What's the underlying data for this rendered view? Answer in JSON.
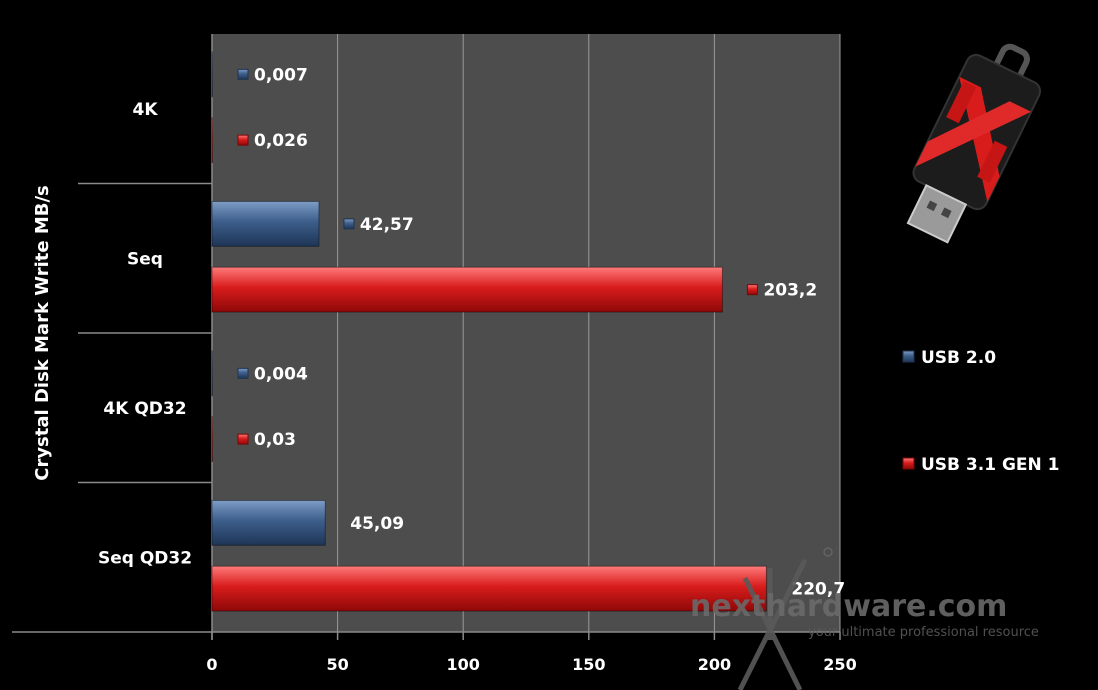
{
  "chart_data": {
    "type": "bar",
    "orientation": "horizontal",
    "ylabel": "Crystal Disk Mark Write MB/s",
    "categories": [
      "4K",
      "Seq",
      "4K QD32",
      "Seq QD32"
    ],
    "series": [
      {
        "name": "USB 2.0",
        "color": "#3a5a86",
        "values": [
          0.007,
          42.57,
          0.004,
          45.09
        ],
        "labels": [
          "0,007",
          "42,57",
          "0,004",
          "45,09"
        ]
      },
      {
        "name": "USB 3.1 GEN 1",
        "color": "#d81c1c",
        "values": [
          0.026,
          203.2,
          0.03,
          220.7
        ],
        "labels": [
          "0,026",
          "203,2",
          "0,03",
          "220,7"
        ]
      }
    ],
    "xlim": [
      0,
      250
    ],
    "xticks": [
      0,
      50,
      100,
      150,
      200,
      250
    ],
    "xtick_labels": [
      "0",
      "50",
      "100",
      "150",
      "200",
      "250"
    ],
    "grid": true,
    "legend_position": "right",
    "plot_background": "#4d4d4d"
  },
  "watermark": {
    "brand": "nexthardware.com",
    "tagline": "your ultimate professional resource"
  },
  "product_image": "usb-flash-drive-icon"
}
